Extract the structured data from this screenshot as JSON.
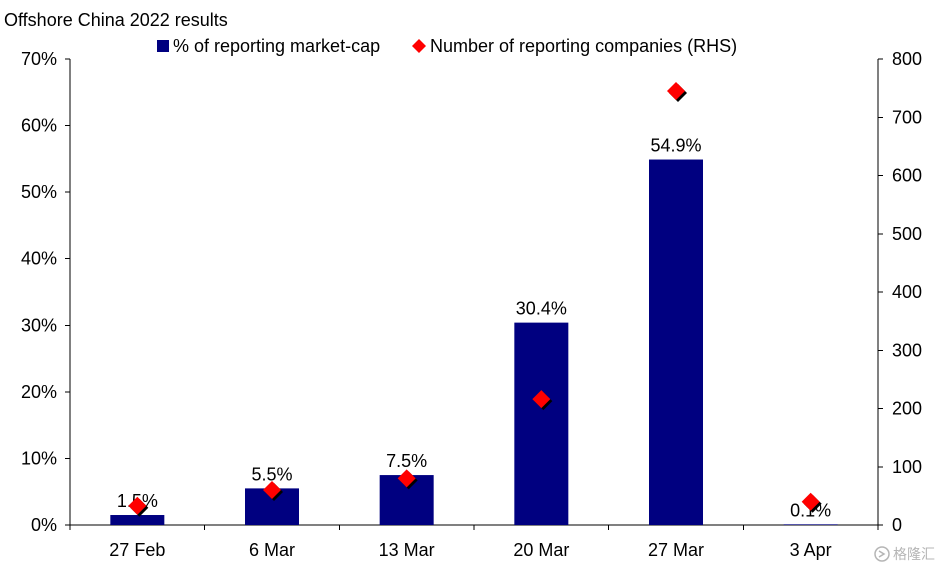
{
  "chart_data": {
    "type": "bar",
    "title": "Offshore China 2022 results",
    "categories": [
      "27 Feb",
      "6 Mar",
      "13 Mar",
      "20 Mar",
      "27 Mar",
      "3 Apr"
    ],
    "series": [
      {
        "name": "% of reporting market-cap",
        "type": "bar",
        "axis": "left",
        "color": "#000080",
        "values": [
          1.5,
          5.5,
          7.5,
          30.4,
          54.9,
          0.1
        ],
        "labels": [
          "1.5%",
          "5.5%",
          "7.5%",
          "30.4%",
          "54.9%",
          "0.1%"
        ]
      },
      {
        "name": "Number of reporting companies (RHS)",
        "type": "scatter",
        "marker": "diamond",
        "axis": "right",
        "color": "#ff0000",
        "values": [
          33,
          60,
          80,
          216,
          745,
          40
        ]
      }
    ],
    "y_left": {
      "range": [
        0,
        70
      ],
      "ticks": [
        0,
        10,
        20,
        30,
        40,
        50,
        60,
        70
      ],
      "tick_labels": [
        "0%",
        "10%",
        "20%",
        "30%",
        "40%",
        "50%",
        "60%",
        "70%"
      ]
    },
    "y_right": {
      "range": [
        0,
        800
      ],
      "ticks": [
        0,
        100,
        200,
        300,
        400,
        500,
        600,
        700,
        800
      ],
      "tick_labels": [
        "0",
        "100",
        "200",
        "300",
        "400",
        "500",
        "600",
        "700",
        "800"
      ]
    },
    "grid": false,
    "legend_position": "top"
  },
  "watermark": {
    "text": "格隆汇"
  }
}
